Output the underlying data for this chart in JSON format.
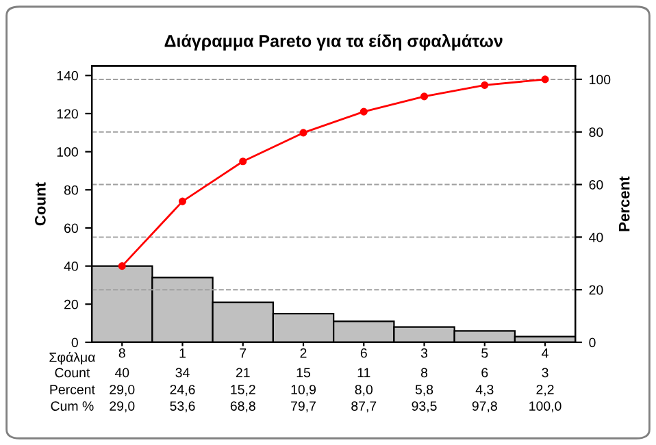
{
  "chart_data": {
    "type": "bar",
    "title": "Διάγραμμα Pareto για τα είδη σφαλμάτων",
    "xlabel": "Σφάλμα",
    "ylabel": "Count",
    "y2label": "Percent",
    "categories": [
      "8",
      "1",
      "7",
      "2",
      "6",
      "3",
      "5",
      "4"
    ],
    "series": [
      {
        "name": "Count",
        "color": "#c0c0c0",
        "values": [
          40,
          34,
          21,
          15,
          11,
          8,
          6,
          3
        ],
        "value_labels": [
          "40",
          "34",
          "21",
          "15",
          "11",
          "8",
          "6",
          "3"
        ]
      },
      {
        "type": "line",
        "axis": "y2",
        "color": "#ff0000",
        "marker": "circle",
        "values": [
          29.0,
          53.6,
          68.8,
          79.7,
          87.7,
          93.5,
          97.8,
          100.0
        ],
        "value_labels": [
          "29,0",
          "53,6",
          "68,8",
          "79,7",
          "87,7",
          "93,5",
          "97,8",
          "100,0"
        ]
      }
    ],
    "ylim": [
      0,
      145
    ],
    "yticks": [
      0,
      20,
      40,
      60,
      80,
      100,
      120,
      140
    ],
    "y2lim": [
      0,
      105.1
    ],
    "y2ticks": [
      0,
      20,
      40,
      60,
      80,
      100
    ],
    "annotations": [
      "Percent",
      "29,0",
      "24,6",
      "15,2",
      "10,9",
      "8,0",
      "5,8",
      "4,3",
      "2,2",
      "Cum %"
    ],
    "grid": "y2",
    "legend": false
  }
}
